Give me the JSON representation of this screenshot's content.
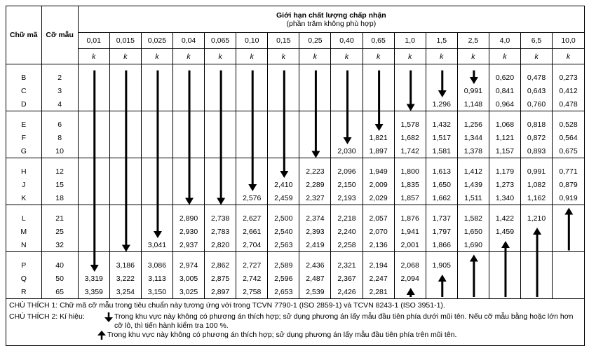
{
  "header": {
    "code_label": "Chữ mã",
    "size_label": "Cỡ mẫu",
    "title": "Giới hạn chất lượng chấp nhận",
    "subtitle": "(phần trăm không phù hợp)",
    "aql": [
      "0,01",
      "0,015",
      "0,025",
      "0,04",
      "0,065",
      "0,10",
      "0,15",
      "0,25",
      "0,40",
      "0,65",
      "1,0",
      "1,5",
      "2,5",
      "4,0",
      "6,5",
      "10,0"
    ],
    "k": [
      "k",
      "k",
      "k",
      "k",
      "k",
      "k",
      "k",
      "k",
      "k",
      "k",
      "k",
      "k",
      "k",
      "k",
      "k",
      "k"
    ]
  },
  "rows": [
    {
      "code": "B",
      "size": 2,
      "cells": [
        null,
        null,
        null,
        null,
        null,
        null,
        null,
        null,
        null,
        null,
        null,
        null,
        null,
        "0,620",
        "0,478",
        "0,273"
      ]
    },
    {
      "code": "C",
      "size": 3,
      "cells": [
        null,
        null,
        null,
        null,
        null,
        null,
        null,
        null,
        null,
        null,
        null,
        null,
        "0,991",
        "0,841",
        "0,643",
        "0,412"
      ]
    },
    {
      "code": "D",
      "size": 4,
      "cells": [
        null,
        null,
        null,
        null,
        null,
        null,
        null,
        null,
        null,
        null,
        null,
        "1,296",
        "1,148",
        "0,964",
        "0,760",
        "0,478"
      ]
    },
    {
      "code": "E",
      "size": 6,
      "cells": [
        null,
        null,
        null,
        null,
        null,
        null,
        null,
        null,
        null,
        null,
        "1,578",
        "1,432",
        "1,256",
        "1,068",
        "0,818",
        "0,528"
      ]
    },
    {
      "code": "F",
      "size": 8,
      "cells": [
        null,
        null,
        null,
        null,
        null,
        null,
        null,
        null,
        null,
        "1,821",
        "1,682",
        "1,517",
        "1,344",
        "1,121",
        "0,872",
        "0,564"
      ]
    },
    {
      "code": "G",
      "size": 10,
      "cells": [
        null,
        null,
        null,
        null,
        null,
        null,
        null,
        null,
        "2,030",
        "1,897",
        "1,742",
        "1,581",
        "1,378",
        "1,157",
        "0,893",
        "0,675"
      ]
    },
    {
      "code": "H",
      "size": 12,
      "cells": [
        null,
        null,
        null,
        null,
        null,
        null,
        null,
        "2,223",
        "2,096",
        "1,949",
        "1,800",
        "1,613",
        "1,412",
        "1,179",
        "0,991",
        "0,771"
      ]
    },
    {
      "code": "J",
      "size": 15,
      "cells": [
        null,
        null,
        null,
        null,
        null,
        null,
        "2,410",
        "2,289",
        "2,150",
        "2,009",
        "1,835",
        "1,650",
        "1,439",
        "1,273",
        "1,082",
        "0,879"
      ]
    },
    {
      "code": "K",
      "size": 18,
      "cells": [
        null,
        null,
        null,
        null,
        null,
        "2,576",
        "2,459",
        "2,327",
        "2,193",
        "2,029",
        "1,857",
        "1,662",
        "1,511",
        "1,340",
        "1,162",
        "0,919"
      ]
    },
    {
      "code": "L",
      "size": 21,
      "cells": [
        null,
        null,
        null,
        "2,890",
        "2,738",
        "2,627",
        "2,500",
        "2,374",
        "2,218",
        "2,057",
        "1,876",
        "1,737",
        "1,582",
        "1,422",
        "1,210",
        null
      ]
    },
    {
      "code": "M",
      "size": 25,
      "cells": [
        null,
        null,
        null,
        "2,930",
        "2,783",
        "2,661",
        "2,540",
        "2,393",
        "2,240",
        "2,070",
        "1,941",
        "1,797",
        "1,650",
        "1,459",
        null,
        null
      ]
    },
    {
      "code": "N",
      "size": 32,
      "cells": [
        null,
        null,
        "3,041",
        "2,937",
        "2,820",
        "2,704",
        "2,563",
        "2,419",
        "2,258",
        "2,136",
        "2,001",
        "1,866",
        "1,690",
        null,
        null,
        null
      ]
    },
    {
      "code": "P",
      "size": 40,
      "cells": [
        null,
        "3,186",
        "3,086",
        "2,974",
        "2,862",
        "2,727",
        "2,589",
        "2,436",
        "2,321",
        "2,194",
        "2,068",
        "1,905",
        null,
        null,
        null,
        null
      ]
    },
    {
      "code": "Q",
      "size": 50,
      "cells": [
        "3,319",
        "3,222",
        "3,113",
        "3,005",
        "2,875",
        "2,742",
        "2,596",
        "2,487",
        "2,367",
        "2,247",
        "2,094",
        null,
        null,
        null,
        null,
        null
      ]
    },
    {
      "code": "R",
      "size": 65,
      "cells": [
        "3,359",
        "3,254",
        "3,150",
        "3,025",
        "2,897",
        "2,758",
        "2,653",
        "2,539",
        "2,426",
        "2,281",
        null,
        null,
        null,
        null,
        null,
        null
      ]
    }
  ],
  "notes": {
    "note1": "CHÚ THÍCH 1: Chữ mã cỡ mẫu trong tiêu chuẩn này tương ứng với trong TCVN 7790-1 (ISO 2859-1) và TCVN  8243-1 (ISO 3951-1).",
    "note2_label": "CHÚ THÍCH 2: Kí hiệu:",
    "down_text": "Trong khu vực này không có phương án thích hợp; sử dụng phương án lấy mẫu đầu tiên phía dưới mũi tên. Nếu cỡ mẫu bằng hoặc lớn hơn cỡ lô, thì tiến hành kiểm tra 100 %.",
    "up_text": "Trong khu vực này không có phương án thích hợp; sử dụng phương án lấy mẫu đầu tiên phía trên mũi tên."
  }
}
